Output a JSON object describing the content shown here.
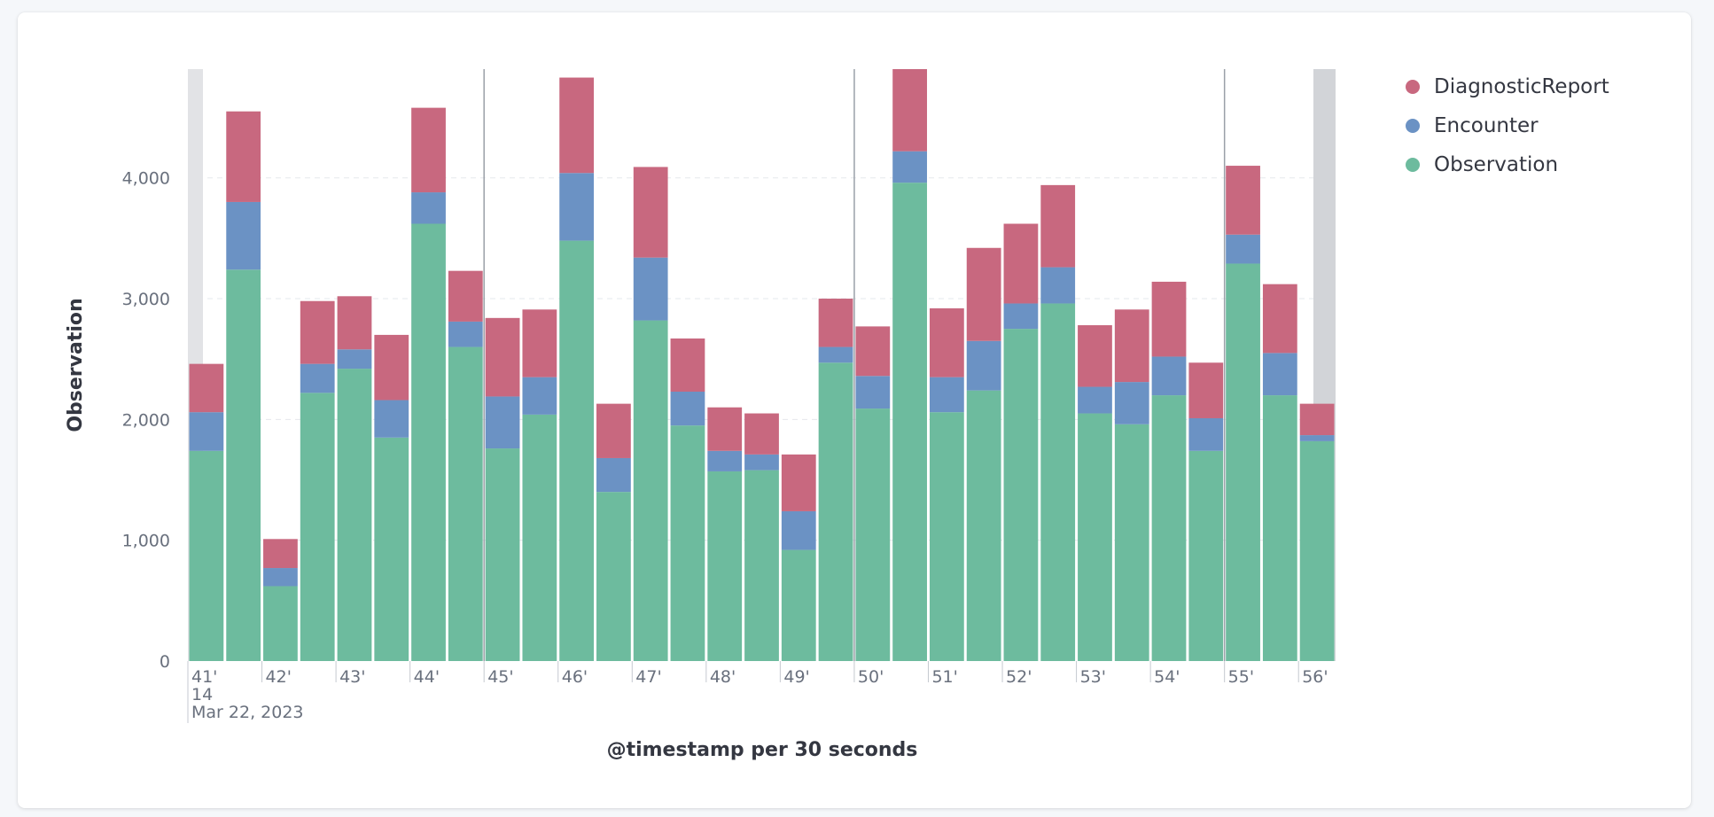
{
  "chart_data": {
    "type": "bar",
    "stacked": true,
    "categories": [
      "41'00",
      "41'30",
      "42'00",
      "42'30",
      "43'00",
      "43'30",
      "44'00",
      "44'30",
      "45'00",
      "45'30",
      "46'00",
      "46'30",
      "47'00",
      "47'30",
      "48'00",
      "48'30",
      "49'00",
      "49'30",
      "50'00",
      "50'30",
      "51'00",
      "51'30",
      "52'00",
      "52'30",
      "53'00",
      "53'30",
      "54'00",
      "54'30",
      "55'00",
      "55'30",
      "56'00"
    ],
    "series": [
      {
        "name": "Observation",
        "color": "#6dbb9e",
        "values": [
          1740,
          3240,
          620,
          2220,
          2420,
          1850,
          3620,
          2600,
          1760,
          2040,
          3480,
          1400,
          2820,
          1950,
          1570,
          1580,
          920,
          2470,
          2090,
          3960,
          2060,
          2240,
          2750,
          2960,
          2050,
          1960,
          2200,
          1740,
          3290,
          2200,
          1820
        ]
      },
      {
        "name": "Encounter",
        "color": "#6b92c4",
        "values": [
          320,
          560,
          150,
          240,
          160,
          310,
          260,
          210,
          430,
          310,
          560,
          280,
          520,
          280,
          170,
          130,
          320,
          130,
          270,
          260,
          290,
          410,
          210,
          300,
          220,
          350,
          320,
          270,
          240,
          350,
          50
        ]
      },
      {
        "name": "DiagnosticReport",
        "color": "#c8687f",
        "values": [
          400,
          750,
          240,
          520,
          440,
          540,
          700,
          420,
          650,
          560,
          790,
          450,
          750,
          440,
          360,
          340,
          470,
          400,
          410,
          1000,
          570,
          770,
          660,
          680,
          510,
          600,
          620,
          460,
          570,
          570,
          260
        ]
      }
    ],
    "xlabel": "@timestamp per 30 seconds",
    "ylabel": "Observation",
    "ylim": [
      0,
      4900
    ],
    "yticks": [
      0,
      1000,
      2000,
      3000,
      4000
    ],
    "ytick_labels": [
      "0",
      "1,000",
      "2,000",
      "3,000",
      "4,000"
    ],
    "xtick_labels": [
      "41'",
      "42'",
      "43'",
      "44'",
      "45'",
      "46'",
      "47'",
      "48'",
      "49'",
      "50'",
      "51'",
      "52'",
      "53'",
      "54'",
      "55'",
      "56'"
    ],
    "x_sub_labels": [
      "14",
      "Mar 22, 2023"
    ],
    "legend_position": "right",
    "grid": true
  },
  "legend": [
    {
      "label": "DiagnosticReport",
      "color": "#c8687f"
    },
    {
      "label": "Encounter",
      "color": "#6b92c4"
    },
    {
      "label": "Observation",
      "color": "#6dbb9e"
    }
  ]
}
